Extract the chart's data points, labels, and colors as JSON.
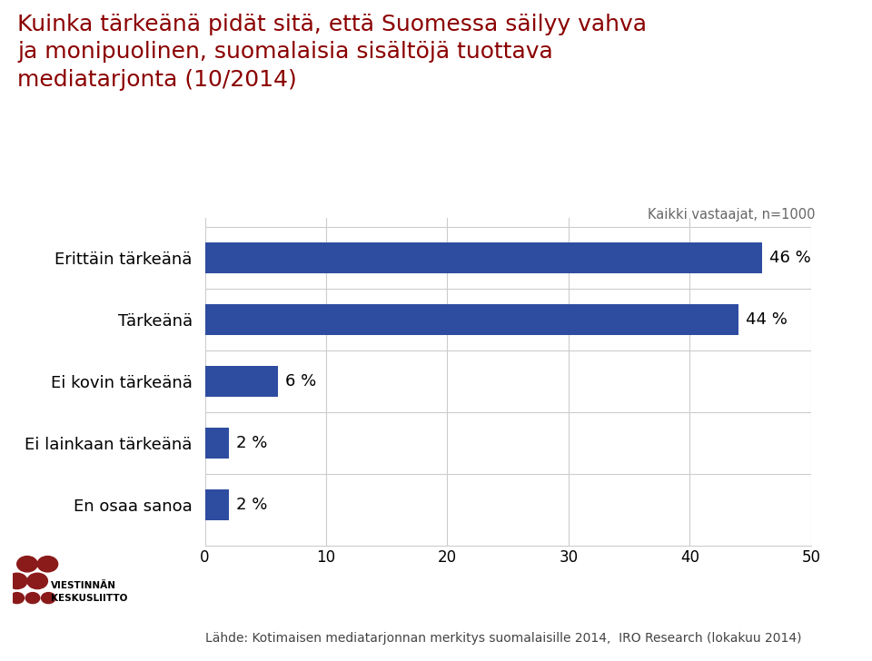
{
  "title_line1": "Kuinka tärkeänä pidät sitä, että Suomessa säilyy vahva",
  "title_line2": "ja monipuolinen, suomalaisia sisältöjä tuottava",
  "title_line3": "mediatarjonta (10/2014)",
  "subtitle": "Kaikki vastaajat, n=1000",
  "categories": [
    "Erittäin tärkeänä",
    "Tärkeänä",
    "Ei kovin tärkeänä",
    "Ei lainkaan tärkeänä",
    "En osaa sanoa"
  ],
  "values": [
    46,
    44,
    6,
    2,
    2
  ],
  "labels": [
    "46 %",
    "44 %",
    "6 %",
    "2 %",
    "2 %"
  ],
  "bar_color": "#2E4DA0",
  "title_color": "#8B0000",
  "subtitle_color": "#666666",
  "footer_text": "Lähde: Kotimaisen mediatarjonnan merkitys suomalaisille 2014,  IRO Research (lokakuu 2014)",
  "xlim": [
    0,
    50
  ],
  "xticks": [
    0,
    10,
    20,
    30,
    40,
    50
  ],
  "bg_color": "#FFFFFF",
  "grid_color": "#CCCCCC",
  "label_fontsize": 13,
  "title_fontsize": 18,
  "subtitle_fontsize": 10.5,
  "footer_fontsize": 10,
  "ytick_fontsize": 13,
  "xtick_fontsize": 12,
  "bar_height": 0.5,
  "dot_color": "#8B1A1A"
}
